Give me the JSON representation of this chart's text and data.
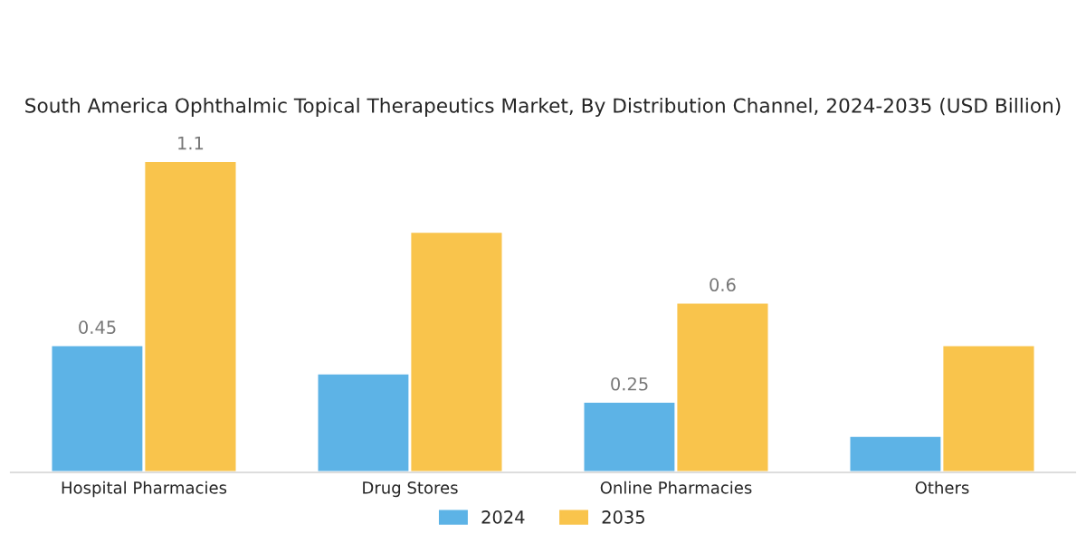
{
  "chart_data": {
    "type": "bar",
    "title": "South America Ophthalmic Topical Therapeutics Market, By Distribution Channel, 2024-2035 (USD Billion)",
    "categories": [
      "Hospital Pharmacies",
      "Drug Stores",
      "Online Pharmacies",
      "Others"
    ],
    "series": [
      {
        "name": "2024",
        "color": "#5db3e6",
        "values": [
          0.45,
          0.35,
          0.25,
          0.13
        ],
        "value_labels": [
          "0.45",
          null,
          "0.25",
          null
        ]
      },
      {
        "name": "2035",
        "color": "#f9c44c",
        "values": [
          1.1,
          0.85,
          0.6,
          0.45
        ],
        "value_labels": [
          "1.1",
          null,
          "0.6",
          null
        ]
      }
    ],
    "legend": "bottom",
    "grid": false
  }
}
